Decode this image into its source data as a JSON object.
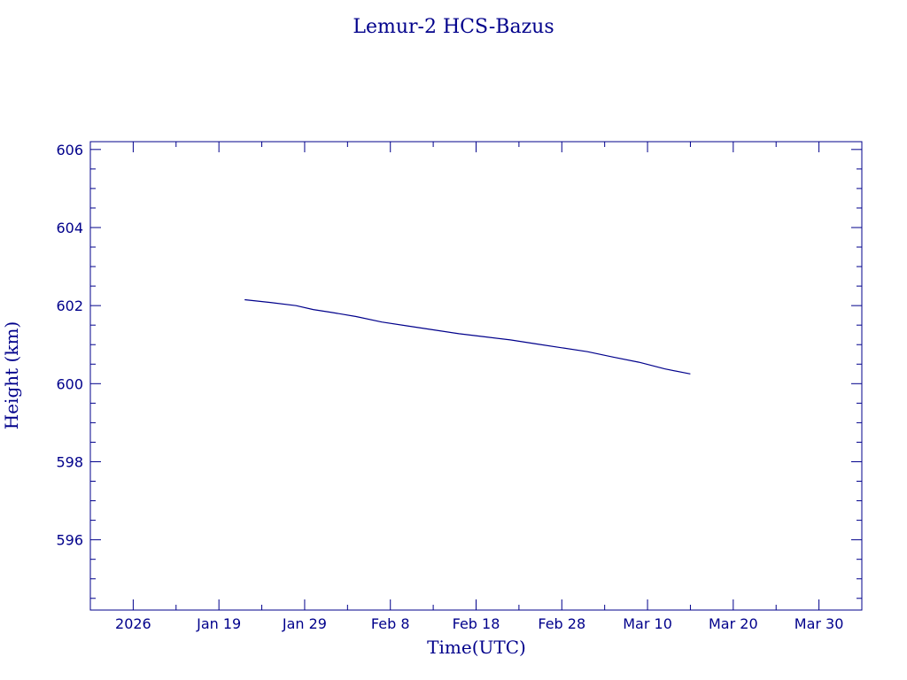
{
  "chart_data": {
    "type": "line",
    "title": "Lemur-2 HCS-Bazus",
    "xlabel": "Time(UTC)",
    "ylabel": "Height (km)",
    "ylim": [
      594.2,
      606.2
    ],
    "xlim": [
      "2026-01-04",
      "2026-04-04"
    ],
    "y_ticks": [
      596,
      598,
      600,
      602,
      604,
      606
    ],
    "y_tick_labels": [
      "596",
      "598",
      "600",
      "602",
      "604",
      "606"
    ],
    "x_ticks": [
      "2026-01-09",
      "2026-01-19",
      "2026-01-29",
      "2026-02-08",
      "2026-02-18",
      "2026-02-28",
      "2026-03-10",
      "2026-03-20",
      "2026-03-30"
    ],
    "x_tick_labels": [
      "2026",
      "Jan 19",
      "Jan 29",
      "Feb  8",
      "Feb 18",
      "Feb 28",
      "Mar 10",
      "Mar 20",
      "Mar 30"
    ],
    "grid": false,
    "color": "#00008b",
    "series": [
      {
        "x": [
          "2026-01-22",
          "2026-01-25",
          "2026-01-28",
          "2026-01-30",
          "2026-02-01",
          "2026-02-04",
          "2026-02-07",
          "2026-02-10",
          "2026-02-13",
          "2026-02-16",
          "2026-02-19",
          "2026-02-22",
          "2026-02-25",
          "2026-02-28",
          "2026-03-03",
          "2026-03-06",
          "2026-03-09",
          "2026-03-12",
          "2026-03-15"
        ],
        "values": [
          602.15,
          602.08,
          602.0,
          601.9,
          601.83,
          601.72,
          601.58,
          601.48,
          601.38,
          601.28,
          601.2,
          601.12,
          601.02,
          600.92,
          600.82,
          600.68,
          600.55,
          600.38,
          600.25
        ]
      }
    ]
  }
}
